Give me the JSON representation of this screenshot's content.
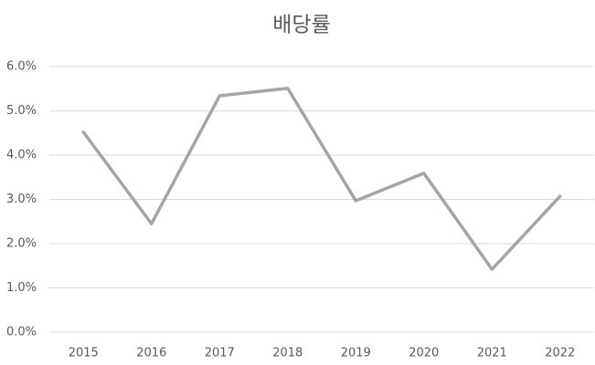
{
  "chart_data": {
    "type": "line",
    "title": "배당률",
    "categories": [
      "2015",
      "2016",
      "2017",
      "2018",
      "2019",
      "2020",
      "2021",
      "2022"
    ],
    "values": [
      4.52,
      2.45,
      5.34,
      5.51,
      2.97,
      3.59,
      1.42,
      3.07
    ],
    "color": "#a5a5a5",
    "ylim": [
      0,
      6
    ],
    "yticks": [
      {
        "value": 0,
        "label": "0.0%"
      },
      {
        "value": 1,
        "label": "1.0%"
      },
      {
        "value": 2,
        "label": "2.0%"
      },
      {
        "value": 3,
        "label": "3.0%"
      },
      {
        "value": 4,
        "label": "4.0%"
      },
      {
        "value": 5,
        "label": "5.0%"
      },
      {
        "value": 6,
        "label": "6.0%"
      }
    ],
    "grid": true
  }
}
